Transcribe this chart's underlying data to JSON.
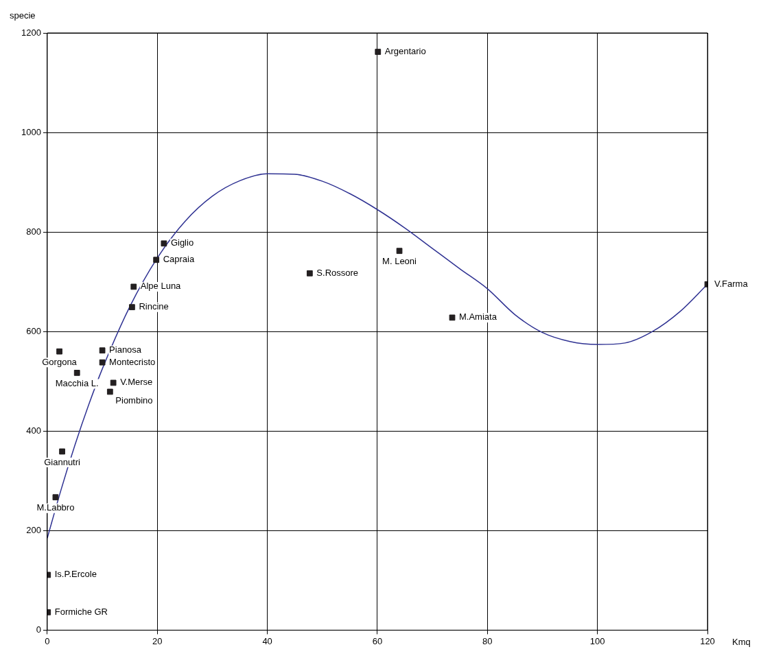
{
  "chart_data": {
    "type": "scatter",
    "xlabel": "Kmq",
    "ylabel": "specie",
    "xlim": [
      0,
      120
    ],
    "xticks": [
      0,
      20,
      40,
      60,
      80,
      100,
      120
    ],
    "ylim": [
      0,
      1200
    ],
    "yticks": [
      0,
      200,
      400,
      600,
      800,
      1000,
      1200
    ],
    "grid": true,
    "marker": "square",
    "series": [
      {
        "type": "scatter",
        "color": "#231f20",
        "x": [
          60.1,
          21.2,
          19.8,
          15.7,
          15.4,
          47.7,
          64.0,
          120,
          73.6,
          2.2,
          10.0,
          10.0,
          5.4,
          12.0,
          11.4,
          2.7,
          1.5,
          0.1,
          0.1
        ],
        "values": [
          1162,
          777,
          744,
          690,
          649,
          717,
          762,
          695,
          628,
          560,
          562,
          538,
          517,
          497,
          479,
          359,
          267,
          111,
          36
        ]
      },
      {
        "type": "line",
        "color": "#2e3192",
        "marker": "none",
        "x": [
          0,
          2.5,
          5,
          7.5,
          10,
          15,
          20,
          25,
          30,
          35,
          40,
          45,
          50,
          55,
          60,
          65,
          70,
          75,
          80,
          85,
          90,
          95,
          100,
          105,
          110,
          115,
          120
        ],
        "values": [
          185,
          282,
          371,
          452,
          525,
          650,
          748,
          821,
          872,
          903,
          917,
          916,
          902,
          877,
          845,
          808,
          767,
          726,
          686,
          634,
          598,
          580,
          574,
          577,
          600,
          640,
          695
        ]
      }
    ],
    "annotations": [
      {
        "text": "Argentario",
        "x": 60.1,
        "y": 1162
      },
      {
        "text": "Giglio",
        "x": 21.2,
        "y": 777
      },
      {
        "text": "Capraia",
        "x": 19.8,
        "y": 744
      },
      {
        "text": "Alpe Luna",
        "x": 15.7,
        "y": 690
      },
      {
        "text": "Rincine",
        "x": 15.4,
        "y": 649
      },
      {
        "text": "S.Rossore",
        "x": 47.7,
        "y": 717
      },
      {
        "text": "M. Leoni",
        "x": 64.0,
        "y": 762
      },
      {
        "text": "V.Farma",
        "x": 120,
        "y": 695
      },
      {
        "text": "M.Amiata",
        "x": 73.6,
        "y": 628
      },
      {
        "text": "Gorgona",
        "x": 2.2,
        "y": 560
      },
      {
        "text": "Pianosa",
        "x": 10.0,
        "y": 562
      },
      {
        "text": "Montecristo",
        "x": 10.0,
        "y": 538
      },
      {
        "text": "Macchia L.",
        "x": 5.4,
        "y": 517
      },
      {
        "text": "V.Merse",
        "x": 12.0,
        "y": 497
      },
      {
        "text": "Piombino",
        "x": 11.4,
        "y": 479
      },
      {
        "text": "Giannutri",
        "x": 2.7,
        "y": 359
      },
      {
        "text": "M.Labbro",
        "x": 1.5,
        "y": 267
      },
      {
        "text": "Is.P.Ercole",
        "x": 0.1,
        "y": 111
      },
      {
        "text": "Formiche GR",
        "x": 0.1,
        "y": 36
      }
    ]
  }
}
